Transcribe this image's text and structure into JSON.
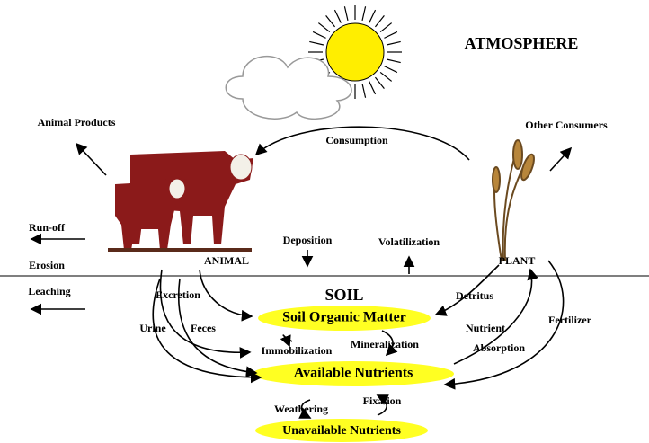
{
  "header": {
    "title": "ATMOSPHERE"
  },
  "labels": [
    "Animal Products",
    "Consumption",
    "Other Consumers",
    "Run-off",
    "Erosion",
    "Leaching",
    "Deposition",
    "Volatilization",
    "ANIMAL",
    "PLANT",
    "SOIL",
    "Excretion",
    "Detritus",
    "Urine",
    "Feces",
    "Nutrient",
    "Absorption",
    "Fertilizer",
    "Immobilization",
    "Mineralization",
    "Weathering",
    "Fixation"
  ],
  "nodes": [
    {
      "label": "Soil Organic Matter"
    },
    {
      "label": "Available Nutrients"
    },
    {
      "label": "Unavailable Nutrients"
    }
  ]
}
